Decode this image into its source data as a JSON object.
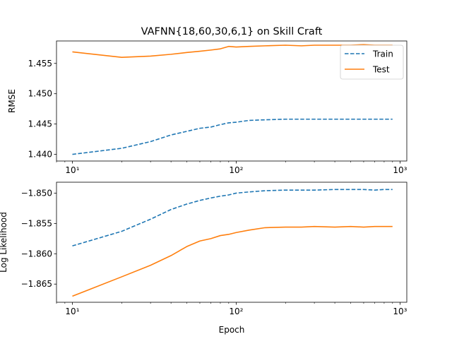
{
  "figure": {
    "title": "VAFNN{18,60,30,6,1} on Skill Craft"
  },
  "chart_data": [
    {
      "type": "line",
      "title": "VAFNN{18,60,30,6,1} on Skill Craft",
      "xlabel": "",
      "ylabel": "RMSE",
      "xscale": "log",
      "xlim": [
        8,
        1100
      ],
      "ylim": [
        1.4389,
        1.4587
      ],
      "xticks": [
        10,
        100,
        1000
      ],
      "xtick_labels": [
        "10¹",
        "10²",
        "10³"
      ],
      "yticks": [
        1.44,
        1.445,
        1.45,
        1.455
      ],
      "ytick_labels": [
        "1.440",
        "1.445",
        "1.450",
        "1.455"
      ],
      "grid": false,
      "legend": {
        "position": "top-right",
        "entries": [
          "Train",
          "Test"
        ]
      },
      "series": [
        {
          "name": "Train",
          "color": "#1f77b4",
          "style": "dashed",
          "x": [
            10,
            20,
            30,
            40,
            50,
            60,
            70,
            80,
            90,
            100,
            120,
            150,
            200,
            250,
            300,
            400,
            500,
            600,
            700,
            800,
            900
          ],
          "y": [
            1.44,
            1.441,
            1.4421,
            1.4432,
            1.4438,
            1.4443,
            1.4445,
            1.4449,
            1.4452,
            1.4453,
            1.4456,
            1.4457,
            1.4458,
            1.4458,
            1.4458,
            1.4458,
            1.4458,
            1.4458,
            1.4458,
            1.4458,
            1.4458
          ]
        },
        {
          "name": "Test",
          "color": "#ff7f0e",
          "style": "solid",
          "x": [
            10,
            20,
            30,
            40,
            50,
            60,
            70,
            80,
            90,
            100,
            120,
            150,
            200,
            250,
            300,
            400,
            500,
            600,
            700,
            800,
            900
          ],
          "y": [
            1.4569,
            1.456,
            1.4562,
            1.4565,
            1.4568,
            1.457,
            1.4572,
            1.4574,
            1.4578,
            1.4577,
            1.4578,
            1.4579,
            1.458,
            1.4579,
            1.458,
            1.458,
            1.458,
            1.4581,
            1.458,
            1.458,
            1.458
          ]
        }
      ]
    },
    {
      "type": "line",
      "title": "",
      "xlabel": "Epoch",
      "ylabel": "Log Likelihood",
      "xscale": "log",
      "xlim": [
        8,
        1100
      ],
      "ylim": [
        -1.868,
        -1.8482
      ],
      "xticks": [
        10,
        100,
        1000
      ],
      "xtick_labels": [
        "10¹",
        "10²",
        "10³"
      ],
      "yticks": [
        -1.865,
        -1.86,
        -1.855,
        -1.85
      ],
      "ytick_labels": [
        "−1.865",
        "−1.860",
        "−1.855",
        "−1.850"
      ],
      "grid": false,
      "series": [
        {
          "name": "Train",
          "color": "#1f77b4",
          "style": "dashed",
          "x": [
            10,
            20,
            30,
            40,
            50,
            60,
            70,
            80,
            90,
            100,
            120,
            150,
            200,
            250,
            300,
            400,
            500,
            600,
            700,
            800,
            900
          ],
          "y": [
            -1.8587,
            -1.8563,
            -1.8543,
            -1.8527,
            -1.8518,
            -1.8512,
            -1.8508,
            -1.8505,
            -1.8503,
            -1.85,
            -1.8498,
            -1.8496,
            -1.8495,
            -1.8495,
            -1.8495,
            -1.8494,
            -1.8494,
            -1.8494,
            -1.8495,
            -1.8494,
            -1.8494
          ]
        },
        {
          "name": "Test",
          "color": "#ff7f0e",
          "style": "solid",
          "x": [
            10,
            20,
            30,
            40,
            50,
            60,
            70,
            80,
            90,
            100,
            120,
            150,
            200,
            250,
            300,
            400,
            500,
            600,
            700,
            800,
            900
          ],
          "y": [
            -1.867,
            -1.8638,
            -1.8619,
            -1.8603,
            -1.8588,
            -1.8579,
            -1.8575,
            -1.857,
            -1.8568,
            -1.8565,
            -1.8561,
            -1.8557,
            -1.8556,
            -1.8556,
            -1.8555,
            -1.8556,
            -1.8555,
            -1.8556,
            -1.8555,
            -1.8555,
            -1.8555
          ]
        }
      ]
    }
  ]
}
